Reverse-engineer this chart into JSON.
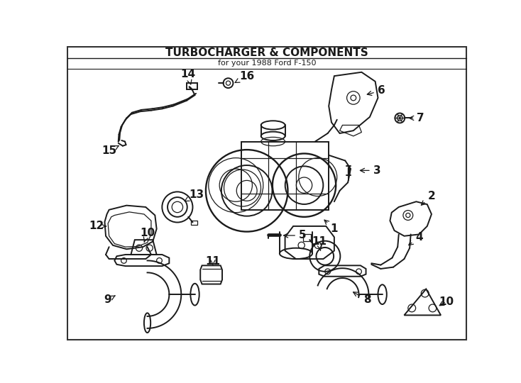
{
  "title": "TURBOCHARGER & COMPONENTS",
  "subtitle": "for your 1988 Ford F-150",
  "bg_color": "#ffffff",
  "line_color": "#1a1a1a",
  "figsize": [
    7.34,
    5.4
  ],
  "dpi": 100,
  "border_color": "#333333",
  "lw_main": 1.4,
  "lw_thin": 0.9,
  "font_size_label": 11,
  "font_size_title": 11,
  "font_size_subtitle": 8
}
